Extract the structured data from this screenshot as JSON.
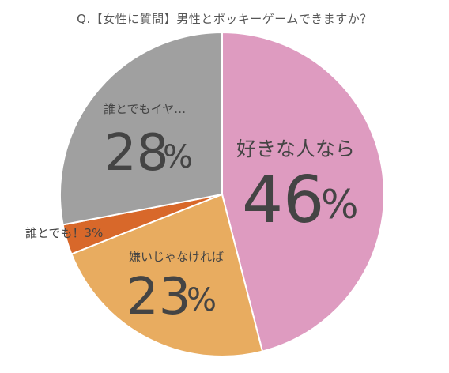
{
  "chart_data": {
    "type": "pie",
    "title": "Q.【女性に質問】男性とポッキーゲームできますか？",
    "start_angle_deg": 0,
    "direction": "clockwise",
    "slices": [
      {
        "label": "好きな人なら",
        "value": 46,
        "value_text": "46",
        "unit": "%",
        "color": "#DE9BC0"
      },
      {
        "label": "嫌いじゃなければ",
        "value": 23,
        "value_text": "23",
        "unit": "%",
        "color": "#E8AC60"
      },
      {
        "label": "誰とでも！3%",
        "value": 3,
        "value_text": "",
        "unit": "",
        "color": "#D8682A"
      },
      {
        "label": "誰とでもイヤ…",
        "value": 28,
        "value_text": "28",
        "unit": "%",
        "color": "#A0A0A0"
      }
    ]
  }
}
